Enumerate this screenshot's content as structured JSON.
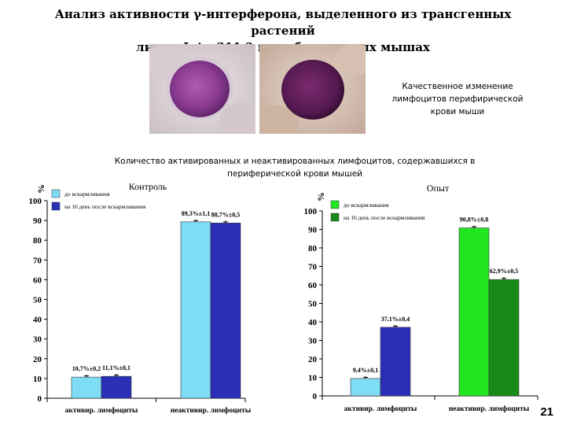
{
  "title_line1": "Анализ активности γ-интерферона, выделенного из трансгенных растений",
  "title_line2": "линии Inter311.2 на лабораторных мышах",
  "caption_right": [
    "Качественное изменение",
    "лимфоцитов перифирической",
    "крови мыши"
  ],
  "caption_mid": [
    "Количество активированных и неактивированных лимфоцитов, содержавшихся в",
    "периферической крови мышей"
  ],
  "page_number": "21",
  "chart_data": [
    {
      "type": "bar",
      "title": "Контроль",
      "ylabel": "%",
      "ylim": [
        0,
        100
      ],
      "yticks": [
        0,
        10,
        20,
        30,
        40,
        50,
        60,
        70,
        80,
        90,
        100
      ],
      "categories": [
        "активир. лимфоциты",
        "неактивир. лимфоциты"
      ],
      "legend": "top-left",
      "series": [
        {
          "name": "до вскармливания",
          "values": [
            10.7,
            89.3
          ],
          "labels": [
            "10,7%±0,2",
            "89,3%±1,1"
          ],
          "color": "#7fdcf5"
        },
        {
          "name": "на 16 день после вскармливания",
          "values": [
            11.1,
            88.7
          ],
          "labels": [
            "11,1%±0,1",
            "88,7%±0,5"
          ],
          "color": "#2b2fb8"
        }
      ]
    },
    {
      "type": "bar",
      "title": "Опыт",
      "ylabel": "%",
      "ylim": [
        0,
        100
      ],
      "yticks": [
        0,
        10,
        20,
        30,
        40,
        50,
        60,
        70,
        80,
        90,
        100
      ],
      "categories": [
        "активир. лимфоциты",
        "неактивир. лимфоциты"
      ],
      "legend": "top-left",
      "series": [
        {
          "name": "до вскармливания",
          "values": [
            9.4,
            90.8
          ],
          "labels": [
            "9,4%±0,1",
            "90,8%±0,8"
          ],
          "color_by_category": [
            "#7fdcf5",
            "#22e622"
          ],
          "legend_color": "#22e622"
        },
        {
          "name": "на 16 день после вскармливания",
          "values": [
            37.1,
            62.9
          ],
          "labels": [
            "37,1%±0,4",
            "62,9%±0,5"
          ],
          "color_by_category": [
            "#2b2fb8",
            "#188a18"
          ],
          "legend_color": "#188a18"
        }
      ]
    }
  ]
}
